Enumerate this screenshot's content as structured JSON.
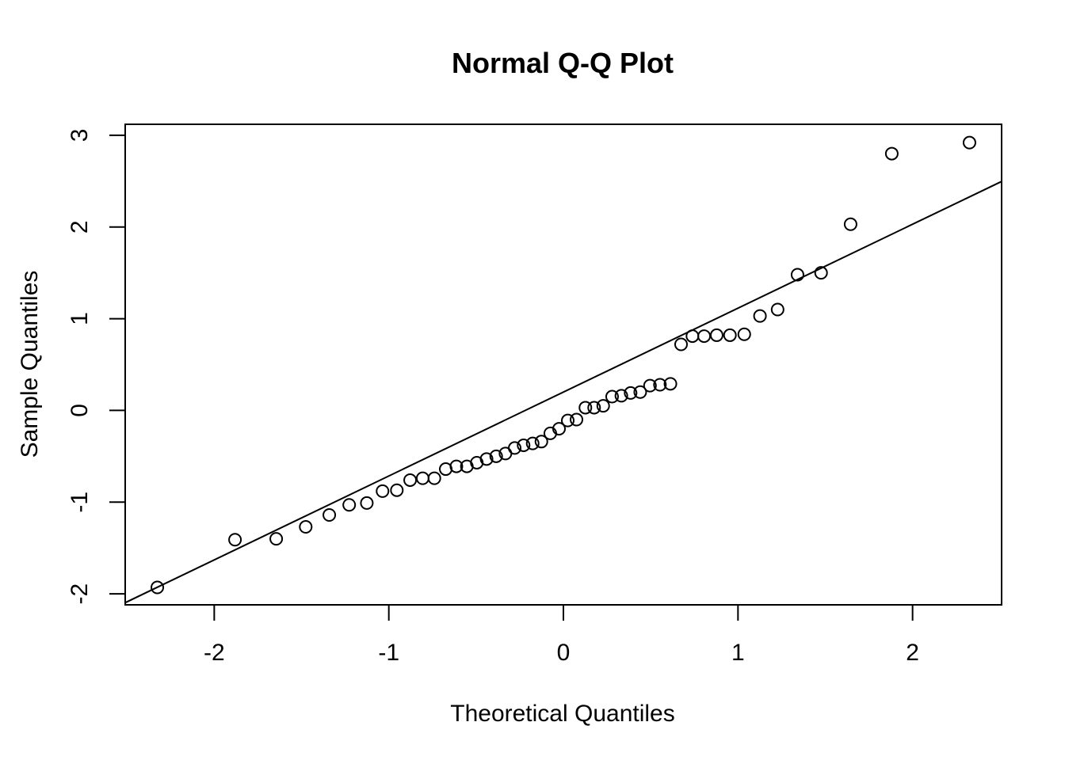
{
  "chart_data": {
    "type": "scatter",
    "title": "Normal Q-Q Plot",
    "xlabel": "Theoretical Quantiles",
    "ylabel": "Sample Quantiles",
    "xlim": [
      -2.51,
      2.51
    ],
    "ylim": [
      -2.12,
      3.12
    ],
    "x_ticks": [
      -2,
      -1,
      0,
      1,
      2
    ],
    "x_tick_labels": [
      "-2",
      "-1",
      "0",
      "1",
      "2"
    ],
    "y_ticks": [
      -2,
      -1,
      0,
      1,
      2,
      3
    ],
    "y_tick_labels": [
      "-2",
      "-1",
      "0",
      "1",
      "2",
      "3"
    ],
    "grid": false,
    "marker": "open-circle",
    "series": [
      {
        "x": [
          -2.326,
          -1.881,
          -1.645,
          -1.476,
          -1.341,
          -1.227,
          -1.126,
          -1.036,
          -0.954,
          -0.878,
          -0.806,
          -0.739,
          -0.674,
          -0.613,
          -0.553,
          -0.496,
          -0.44,
          -0.385,
          -0.332,
          -0.279,
          -0.228,
          -0.176,
          -0.126,
          -0.075,
          -0.025,
          0.025,
          0.075,
          0.126,
          0.176,
          0.228,
          0.279,
          0.332,
          0.385,
          0.44,
          0.496,
          0.553,
          0.613,
          0.674,
          0.739,
          0.806,
          0.878,
          0.954,
          1.036,
          1.126,
          1.227,
          1.341,
          1.476,
          1.645,
          1.881,
          2.326
        ],
        "y": [
          -1.93,
          -1.41,
          -1.4,
          -1.27,
          -1.14,
          -1.03,
          -1.01,
          -0.88,
          -0.87,
          -0.76,
          -0.74,
          -0.74,
          -0.64,
          -0.61,
          -0.61,
          -0.57,
          -0.53,
          -0.5,
          -0.47,
          -0.41,
          -0.38,
          -0.36,
          -0.34,
          -0.25,
          -0.2,
          -0.11,
          -0.1,
          0.03,
          0.03,
          0.05,
          0.15,
          0.16,
          0.19,
          0.2,
          0.27,
          0.28,
          0.29,
          0.72,
          0.81,
          0.81,
          0.82,
          0.82,
          0.83,
          1.03,
          1.1,
          1.48,
          1.5,
          2.03,
          2.8,
          2.92
        ]
      }
    ],
    "reference_line": {
      "intercept": 0.2,
      "slope": 0.915
    }
  }
}
